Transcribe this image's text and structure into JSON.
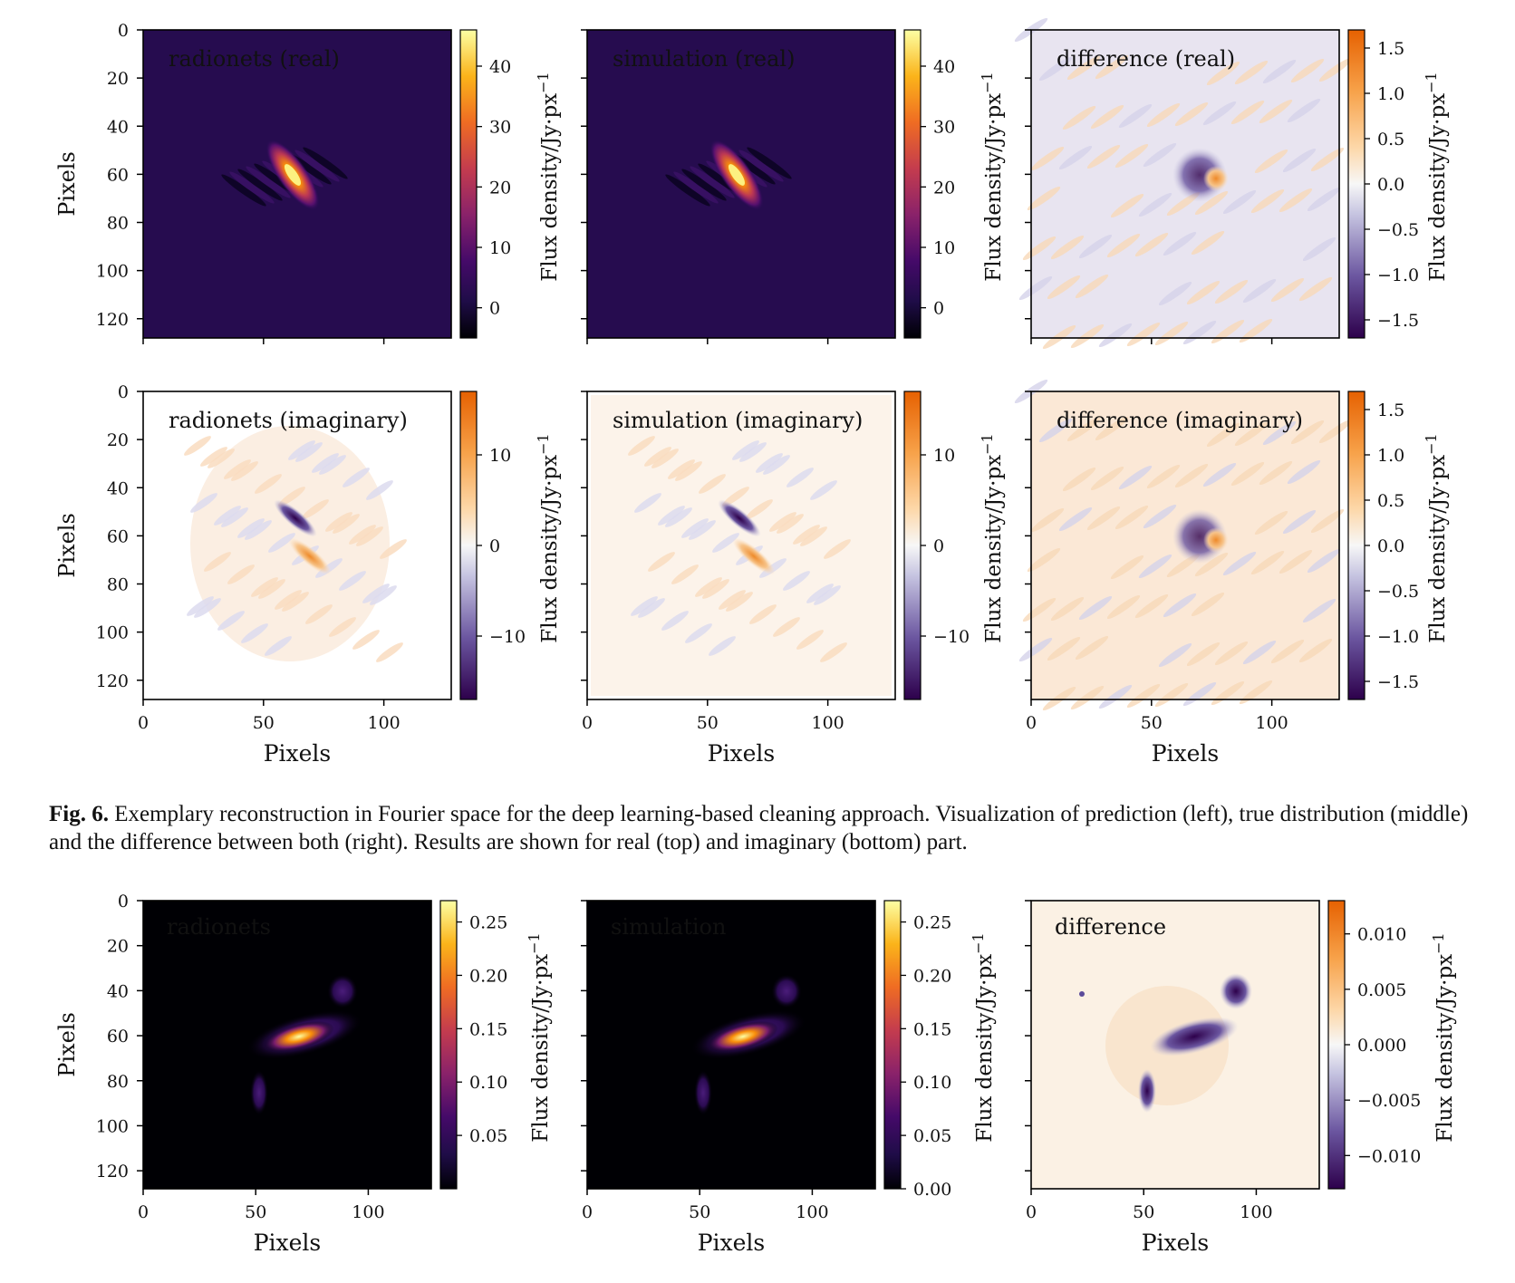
{
  "figure_6": {
    "label": "Fig. 6.",
    "caption": "Exemplary reconstruction in Fourier space for the deep learning-based cleaning approach. Visualization of prediction (left), true distribution (middle) and the difference between both (right). Results are shown for real (top) and imaginary (bottom) part."
  },
  "axis_label_x": "Pixels",
  "axis_label_y": "Pixels",
  "colorbar_label": "Flux density/Jy·px",
  "colorbar_label_exp": "−1",
  "chart_data": [
    {
      "type": "heatmap",
      "title": "radionets (real)",
      "xlim": [
        0,
        128
      ],
      "ylim": [
        128,
        0
      ],
      "yticks": [
        "0",
        "20",
        "40",
        "60",
        "80",
        "100",
        "120"
      ],
      "xticks": [],
      "colormap": "inferno",
      "colorbar_ticks": [
        "40",
        "30",
        "20",
        "10",
        "0"
      ],
      "colorbar_range": [
        -5,
        46
      ]
    },
    {
      "type": "heatmap",
      "title": "simulation (real)",
      "xlim": [
        0,
        128
      ],
      "ylim": [
        128,
        0
      ],
      "yticks": [],
      "xticks": [],
      "colormap": "inferno",
      "colorbar_ticks": [
        "40",
        "30",
        "20",
        "10",
        "0"
      ],
      "colorbar_range": [
        -5,
        46
      ]
    },
    {
      "type": "heatmap",
      "title": "difference (real)",
      "xlim": [
        0,
        128
      ],
      "ylim": [
        128,
        0
      ],
      "yticks": [],
      "xticks": [],
      "colormap": "PuOr_r",
      "colorbar_ticks": [
        "1.5",
        "1.0",
        "0.5",
        "0.0",
        "−0.5",
        "−1.0",
        "−1.5"
      ],
      "colorbar_range": [
        -1.7,
        1.7
      ]
    },
    {
      "type": "heatmap",
      "title": "radionets (imaginary)",
      "xlim": [
        0,
        128
      ],
      "ylim": [
        128,
        0
      ],
      "yticks": [
        "0",
        "20",
        "40",
        "60",
        "80",
        "100",
        "120"
      ],
      "xticks": [
        "0",
        "50",
        "100"
      ],
      "colormap": "PuOr_r",
      "colorbar_ticks": [
        "10",
        "0",
        "−10"
      ],
      "colorbar_range": [
        -17,
        17
      ]
    },
    {
      "type": "heatmap",
      "title": "simulation (imaginary)",
      "xlim": [
        0,
        128
      ],
      "ylim": [
        128,
        0
      ],
      "yticks": [],
      "xticks": [
        "0",
        "50",
        "100"
      ],
      "colormap": "PuOr_r",
      "colorbar_ticks": [
        "10",
        "0",
        "−10"
      ],
      "colorbar_range": [
        -17,
        17
      ]
    },
    {
      "type": "heatmap",
      "title": "difference (imaginary)",
      "xlim": [
        0,
        128
      ],
      "ylim": [
        128,
        0
      ],
      "yticks": [],
      "xticks": [
        "0",
        "50",
        "100"
      ],
      "colormap": "PuOr_r",
      "colorbar_ticks": [
        "1.5",
        "1.0",
        "0.5",
        "0.0",
        "−0.5",
        "−1.0",
        "−1.5"
      ],
      "colorbar_range": [
        -1.7,
        1.7
      ]
    },
    {
      "type": "heatmap",
      "title": "radionets",
      "xlim": [
        0,
        128
      ],
      "ylim": [
        128,
        0
      ],
      "yticks": [
        "0",
        "20",
        "40",
        "60",
        "80",
        "100",
        "120"
      ],
      "xticks": [
        "0",
        "50",
        "100"
      ],
      "colormap": "inferno",
      "colorbar_ticks": [
        "0.25",
        "0.20",
        "0.15",
        "0.10",
        "0.05"
      ],
      "colorbar_range": [
        0,
        0.27
      ]
    },
    {
      "type": "heatmap",
      "title": "simulation",
      "xlim": [
        0,
        128
      ],
      "ylim": [
        128,
        0
      ],
      "yticks": [],
      "xticks": [
        "0",
        "50",
        "100"
      ],
      "colormap": "inferno",
      "colorbar_ticks": [
        "0.25",
        "0.20",
        "0.15",
        "0.10",
        "0.05",
        "0.00"
      ],
      "colorbar_range": [
        0,
        0.27
      ]
    },
    {
      "type": "heatmap",
      "title": "difference",
      "xlim": [
        0,
        128
      ],
      "ylim": [
        128,
        0
      ],
      "yticks": [],
      "xticks": [
        "0",
        "50",
        "100"
      ],
      "colormap": "PuOr_r",
      "colorbar_ticks": [
        "0.010",
        "0.005",
        "0.000",
        "−0.005",
        "−0.010"
      ],
      "colorbar_range": [
        -0.013,
        0.013
      ]
    }
  ]
}
